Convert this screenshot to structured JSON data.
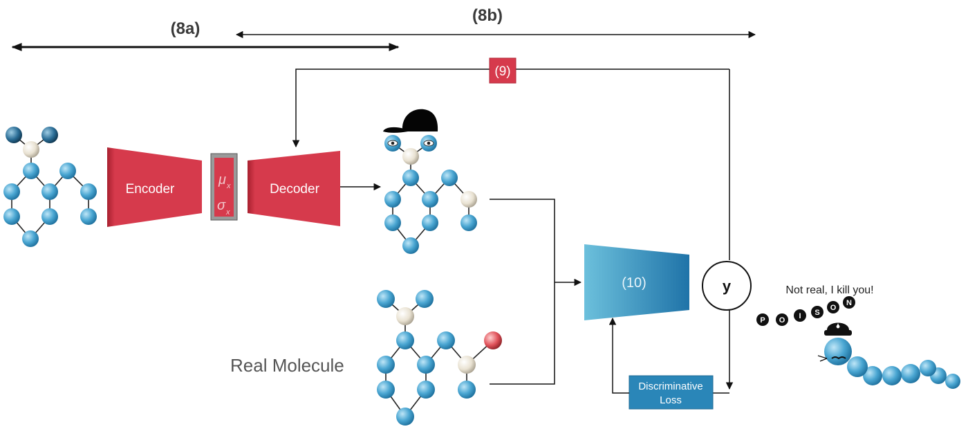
{
  "labels": {
    "step_8a": "(8a)",
    "step_8b": "(8b)",
    "step_9": "(9)",
    "step_10": "(10)",
    "encoder": "Encoder",
    "decoder": "Decoder",
    "latent_mu": "μ",
    "latent_sigma": "σ",
    "latent_subscript": "x",
    "y_node": "y",
    "real_molecule": "Real Molecule",
    "discriminative_loss_line1": "Discriminative",
    "discriminative_loss_line2": "Loss",
    "speech": "Not real, I kill you!",
    "poison_letters": [
      "P",
      "O",
      "I",
      "S",
      "O",
      "N"
    ]
  },
  "colors": {
    "vae_red": "#d63a4c",
    "discriminator_blue": "#2a86b8",
    "atom_blue": "#4aa6d2",
    "atom_beige": "#e9e2d2",
    "atom_red": "#e0525a"
  }
}
